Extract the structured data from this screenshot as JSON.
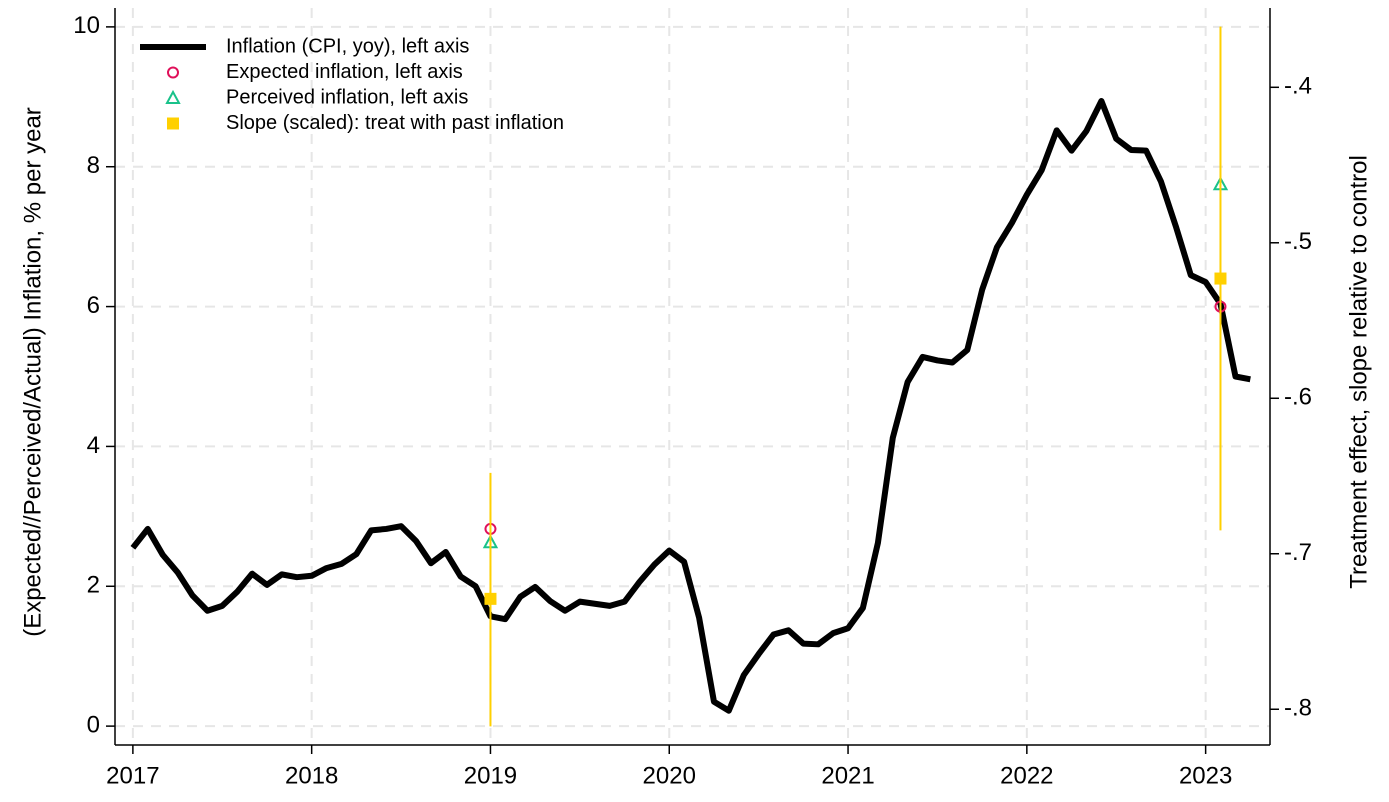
{
  "chart_data": {
    "type": "line",
    "ylabel": "(Expected//Perceived/Actual) Inflation, % per year",
    "y2label": "Treatment effect, slope relative to control",
    "xlim": [
      2016.9,
      2023.36
    ],
    "xticks": [
      2017,
      2018,
      2019,
      2020,
      2021,
      2022,
      2023
    ],
    "ylim": [
      -0.27,
      10.27
    ],
    "yticks": [
      0,
      2,
      4,
      6,
      8,
      10
    ],
    "y2lim": [
      -0.823,
      -0.349
    ],
    "y2ticks": [
      {
        "value": -0.4,
        "label": "-.4"
      },
      {
        "value": -0.5,
        "label": "-.5"
      },
      {
        "value": -0.6,
        "label": "-.6"
      },
      {
        "value": -0.7,
        "label": "-.7"
      },
      {
        "value": -0.8,
        "label": "-.8"
      }
    ],
    "grid": true,
    "legend": "upper left",
    "series": [
      {
        "name": "Inflation (CPI, yoy), left axis",
        "marker": "line",
        "color": "#000000",
        "x": [
          2017,
          2017.083,
          2017.167,
          2017.25,
          2017.333,
          2017.417,
          2017.5,
          2017.583,
          2017.667,
          2017.75,
          2017.833,
          2017.917,
          2018,
          2018.083,
          2018.167,
          2018.25,
          2018.333,
          2018.417,
          2018.5,
          2018.583,
          2018.667,
          2018.75,
          2018.833,
          2018.917,
          2019,
          2019.083,
          2019.167,
          2019.25,
          2019.333,
          2019.417,
          2019.5,
          2019.583,
          2019.667,
          2019.75,
          2019.833,
          2019.917,
          2020,
          2020.083,
          2020.167,
          2020.25,
          2020.333,
          2020.417,
          2020.5,
          2020.583,
          2020.667,
          2020.75,
          2020.833,
          2020.917,
          2021,
          2021.083,
          2021.167,
          2021.25,
          2021.333,
          2021.417,
          2021.5,
          2021.583,
          2021.667,
          2021.75,
          2021.833,
          2021.917,
          2022,
          2022.083,
          2022.167,
          2022.25,
          2022.333,
          2022.417,
          2022.5,
          2022.583,
          2022.667,
          2022.75,
          2022.833,
          2022.917,
          2023,
          2023.083,
          2023.167,
          2023.25
        ],
        "values": [
          2.55,
          2.82,
          2.45,
          2.2,
          1.87,
          1.65,
          1.72,
          1.92,
          2.18,
          2.02,
          2.17,
          2.13,
          2.15,
          2.26,
          2.32,
          2.46,
          2.8,
          2.82,
          2.86,
          2.65,
          2.33,
          2.49,
          2.14,
          2.0,
          1.57,
          1.53,
          1.85,
          1.99,
          1.79,
          1.65,
          1.78,
          1.75,
          1.72,
          1.78,
          2.06,
          2.31,
          2.51,
          2.35,
          1.55,
          0.35,
          0.22,
          0.73,
          1.03,
          1.31,
          1.37,
          1.18,
          1.17,
          1.33,
          1.4,
          1.69,
          2.62,
          4.12,
          4.92,
          5.28,
          5.23,
          5.2,
          5.38,
          6.24,
          6.85,
          7.2,
          7.6,
          7.95,
          8.52,
          8.23,
          8.51,
          8.94,
          8.4,
          8.24,
          8.23,
          7.79,
          7.15,
          6.45,
          6.35,
          6.04,
          5.0,
          4.96
        ]
      },
      {
        "name": "Expected inflation, left axis",
        "marker": "circle",
        "color": "#e0105a",
        "x": [
          2019,
          2023.083
        ],
        "values": [
          2.82,
          6.0
        ]
      },
      {
        "name": "Perceived inflation, left axis",
        "marker": "triangle",
        "color": "#19c28a",
        "x": [
          2019,
          2023.083
        ],
        "values": [
          2.63,
          7.75
        ]
      },
      {
        "name": "Slope (scaled): treat with past inflation",
        "marker": "square",
        "color": "#ffd000",
        "axis": "y2",
        "x": [
          2019,
          2023.083
        ],
        "values": [
          -0.729,
          -0.523
        ],
        "ci_low": [
          -0.811,
          -0.685
        ],
        "ci_high": [
          -0.648,
          -0.361
        ]
      }
    ]
  }
}
